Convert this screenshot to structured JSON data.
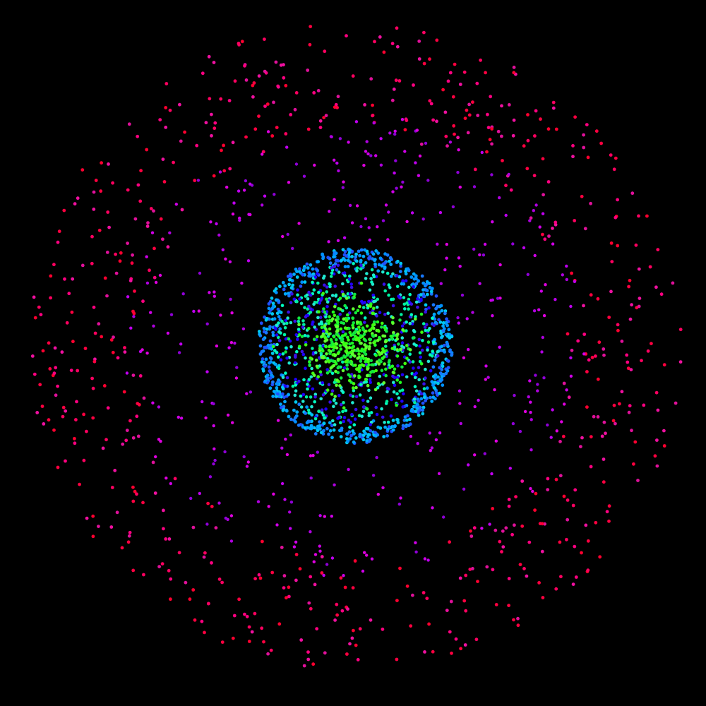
{
  "scene": {
    "background": "#000000",
    "layers": [
      {
        "name": "outer-ring",
        "colors": [
          "#ff0040",
          "#ff0060",
          "#ff0080",
          "#f010a0",
          "#ff0030",
          "#e0109a"
        ]
      },
      {
        "name": "middle-halo",
        "colors": [
          "#b000e0",
          "#c000f0",
          "#d000e8",
          "#9000d8",
          "#e000e0"
        ]
      },
      {
        "name": "sphere-shell",
        "colors": [
          "#0090ff",
          "#00a8ff",
          "#1878ff",
          "#00c8f0",
          "#2050ff"
        ]
      },
      {
        "name": "sphere-interior",
        "colors": [
          "#2000ff",
          "#3a10e8",
          "#00ffc0",
          "#00f0a0",
          "#20e8d0"
        ]
      },
      {
        "name": "core",
        "colors": [
          "#20ff20",
          "#40ff10",
          "#10e840",
          "#60ff30"
        ]
      }
    ]
  }
}
